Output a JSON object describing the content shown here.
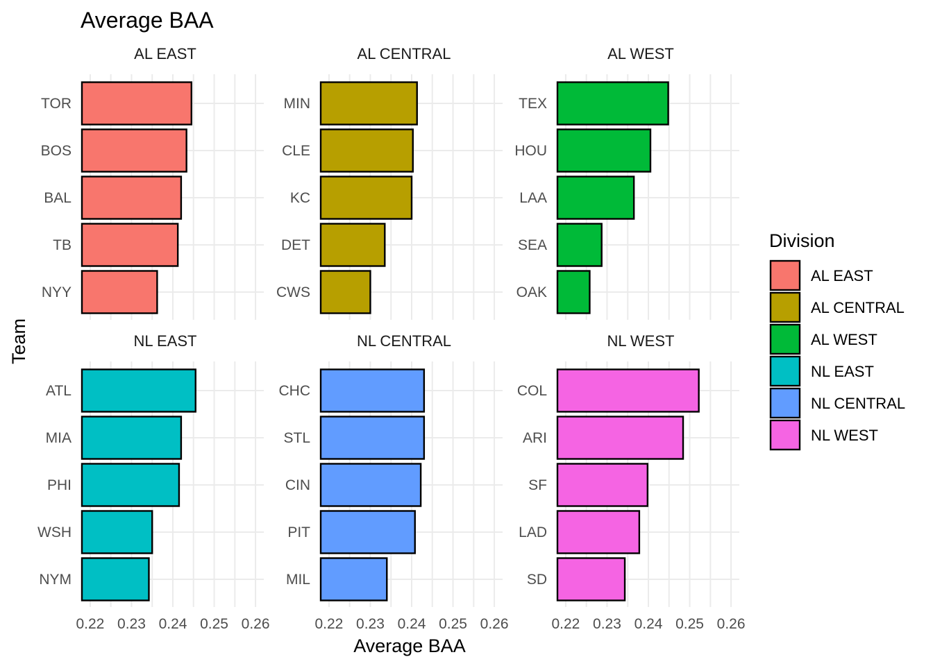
{
  "chart_data": {
    "type": "bar",
    "orientation": "horizontal",
    "title": "Average BAA",
    "xlabel": "Average BAA",
    "ylabel": "Team",
    "xlim": [
      0.218,
      0.262
    ],
    "x_ticks": [
      "0.22",
      "0.23",
      "0.24",
      "0.25",
      "0.26"
    ],
    "x_tick_values": [
      0.22,
      0.23,
      0.24,
      0.25,
      0.26
    ],
    "grid": true,
    "legend": {
      "title": "Division",
      "position": "right",
      "entries": [
        {
          "label": "AL EAST",
          "color": "#F8766D"
        },
        {
          "label": "AL CENTRAL",
          "color": "#B79F00"
        },
        {
          "label": "AL WEST",
          "color": "#00BA38"
        },
        {
          "label": "NL EAST",
          "color": "#00BFC4"
        },
        {
          "label": "NL CENTRAL",
          "color": "#619CFF"
        },
        {
          "label": "NL WEST",
          "color": "#F564E3"
        }
      ]
    },
    "facets": [
      {
        "name": "AL EAST",
        "color": "#F8766D",
        "categories": [
          "TOR",
          "BOS",
          "BAL",
          "TB",
          "NYY"
        ],
        "values": [
          0.2445,
          0.2433,
          0.242,
          0.2412,
          0.2362
        ]
      },
      {
        "name": "AL CENTRAL",
        "color": "#B79F00",
        "categories": [
          "MIN",
          "CLE",
          "KC",
          "DET",
          "CWS"
        ],
        "values": [
          0.2413,
          0.2403,
          0.24,
          0.2335,
          0.23
        ]
      },
      {
        "name": "AL WEST",
        "color": "#00BA38",
        "categories": [
          "TEX",
          "HOU",
          "LAA",
          "SEA",
          "OAK"
        ],
        "values": [
          0.2448,
          0.2405,
          0.2365,
          0.2287,
          0.2258
        ]
      },
      {
        "name": "NL EAST",
        "color": "#00BFC4",
        "categories": [
          "ATL",
          "MIA",
          "PHI",
          "WSH",
          "NYM"
        ],
        "values": [
          0.2455,
          0.242,
          0.2415,
          0.235,
          0.2342
        ]
      },
      {
        "name": "NL CENTRAL",
        "color": "#619CFF",
        "categories": [
          "CHC",
          "STL",
          "CIN",
          "PIT",
          "MIL"
        ],
        "values": [
          0.243,
          0.243,
          0.2422,
          0.2408,
          0.234
        ]
      },
      {
        "name": "NL WEST",
        "color": "#F564E3",
        "categories": [
          "COL",
          "ARI",
          "SF",
          "LAD",
          "SD"
        ],
        "values": [
          0.2522,
          0.2484,
          0.2398,
          0.2378,
          0.2343
        ]
      }
    ]
  }
}
